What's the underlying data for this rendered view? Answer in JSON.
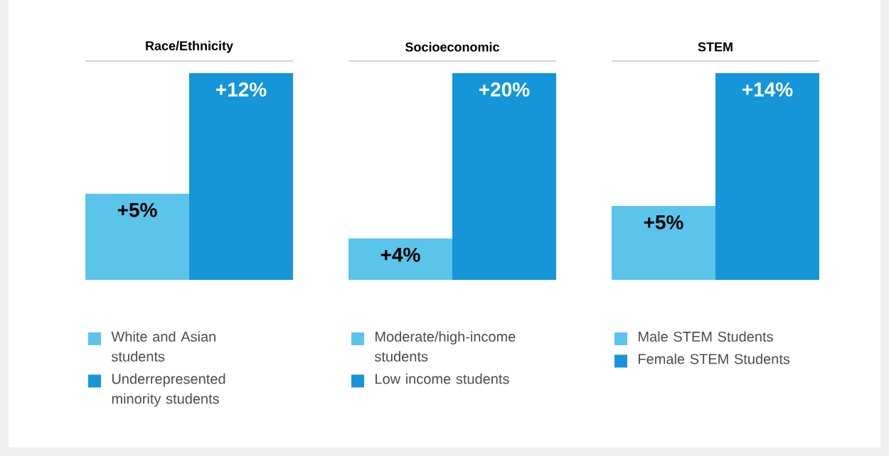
{
  "chart_data": [
    {
      "type": "bar",
      "title": "Race/Ethnicity",
      "categories": [
        null
      ],
      "legend": "bottom",
      "series": [
        {
          "name": "White and Asian students",
          "color": "#5bc4ea",
          "values": [
            5
          ],
          "value_labels": [
            "+5%"
          ]
        },
        {
          "name": "Underrepresented minority students",
          "color": "#1496d8",
          "values": [
            12
          ],
          "value_labels": [
            "+12%"
          ]
        }
      ]
    },
    {
      "type": "bar",
      "title": "Socioeconomic",
      "categories": [
        null
      ],
      "legend": "bottom",
      "series": [
        {
          "name": "Moderate/high-income students",
          "color": "#5bc4ea",
          "values": [
            4
          ],
          "value_labels": [
            "+4%"
          ]
        },
        {
          "name": "Low income students",
          "color": "#1496d8",
          "values": [
            20
          ],
          "value_labels": [
            "+20%"
          ]
        }
      ]
    },
    {
      "type": "bar",
      "title": "STEM",
      "categories": [
        null
      ],
      "legend": "bottom",
      "series": [
        {
          "name": "Male STEM Students",
          "color": "#5bc4ea",
          "values": [
            5
          ],
          "value_labels": [
            "+5%"
          ]
        },
        {
          "name": "Female STEM Students",
          "color": "#1496d8",
          "values": [
            14
          ],
          "value_labels": [
            "+14%"
          ]
        }
      ]
    }
  ]
}
